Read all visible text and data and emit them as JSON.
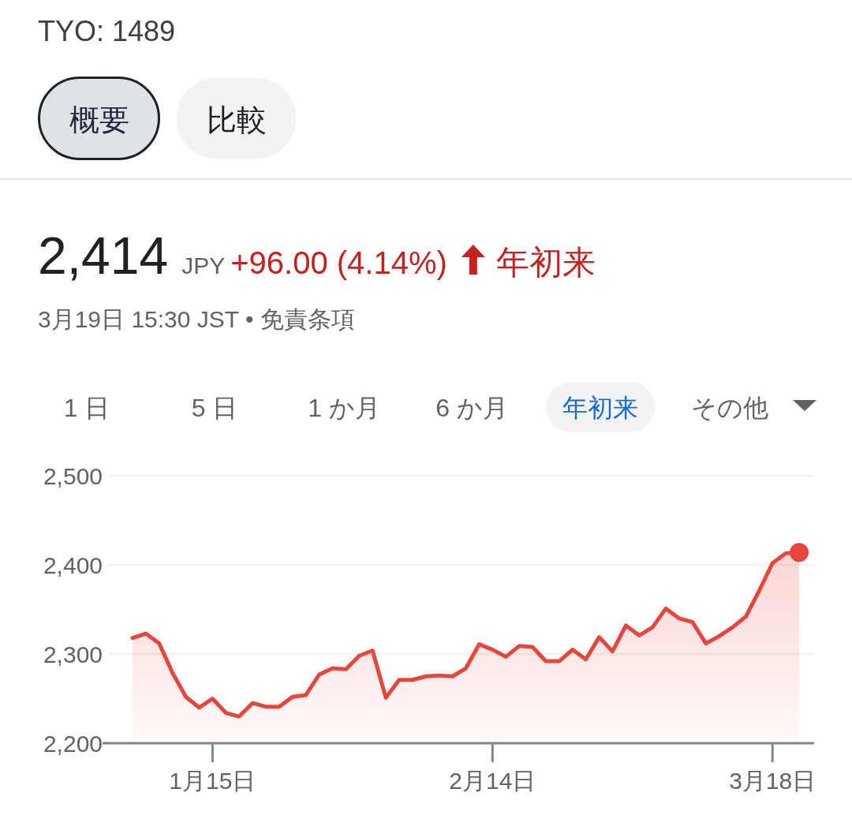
{
  "chart_data": {
    "type": "area",
    "title": "TYO: 1489",
    "annotations": [
      "概要",
      "比較",
      "2,414",
      "JPY",
      "+96.00 (4.14%)",
      "年初来",
      "3月19日 15:30 JST • 免責条項",
      "1 日",
      "5 日",
      "1 か月",
      "6 か月",
      "年初来",
      "その他"
    ],
    "categories": [
      null,
      null,
      null,
      null,
      null,
      null,
      "1月15日",
      null,
      null,
      null,
      null,
      null,
      null,
      null,
      null,
      null,
      null,
      null,
      null,
      null,
      null,
      null,
      null,
      null,
      null,
      null,
      null,
      "2月14日",
      null,
      null,
      null,
      null,
      null,
      null,
      null,
      null,
      null,
      null,
      null,
      null,
      null,
      null,
      null,
      null,
      null,
      null,
      null,
      null,
      "3月18日",
      null,
      null
    ],
    "series": [
      {
        "color": "#e8453c",
        "values": [
          2318,
          2323,
          2312,
          2279,
          2252,
          2240,
          2250,
          2234,
          2230,
          2245,
          2241,
          2241,
          2252,
          2254,
          2277,
          2284,
          2283,
          2298,
          2304,
          2251,
          2271,
          2271,
          2275,
          2276,
          2275,
          2284,
          2311,
          2305,
          2297,
          2309,
          2308,
          2292,
          2292,
          2305,
          2294,
          2319,
          2303,
          2332,
          2321,
          2330,
          2351,
          2340,
          2336,
          2312,
          2320,
          2330,
          2342,
          2371,
          2402,
          2413,
          2414
        ]
      },
      {
        "type": "scatter",
        "marker": "circle",
        "color": "#e8453c",
        "values": [
          null,
          null,
          null,
          null,
          null,
          null,
          null,
          null,
          null,
          null,
          null,
          null,
          null,
          null,
          null,
          null,
          null,
          null,
          null,
          null,
          null,
          null,
          null,
          null,
          null,
          null,
          null,
          null,
          null,
          null,
          null,
          null,
          null,
          null,
          null,
          null,
          null,
          null,
          null,
          null,
          null,
          null,
          null,
          null,
          null,
          null,
          null,
          null,
          null,
          null,
          2414
        ]
      }
    ],
    "ylim": [
      2200,
      2500
    ],
    "yticks": [
      {
        "value": 2200,
        "label": "2,200"
      },
      {
        "value": 2300,
        "label": "2,300"
      },
      {
        "value": 2400,
        "label": "2,400"
      },
      {
        "value": 2500,
        "label": "2,500"
      }
    ],
    "grid": "y"
  }
}
